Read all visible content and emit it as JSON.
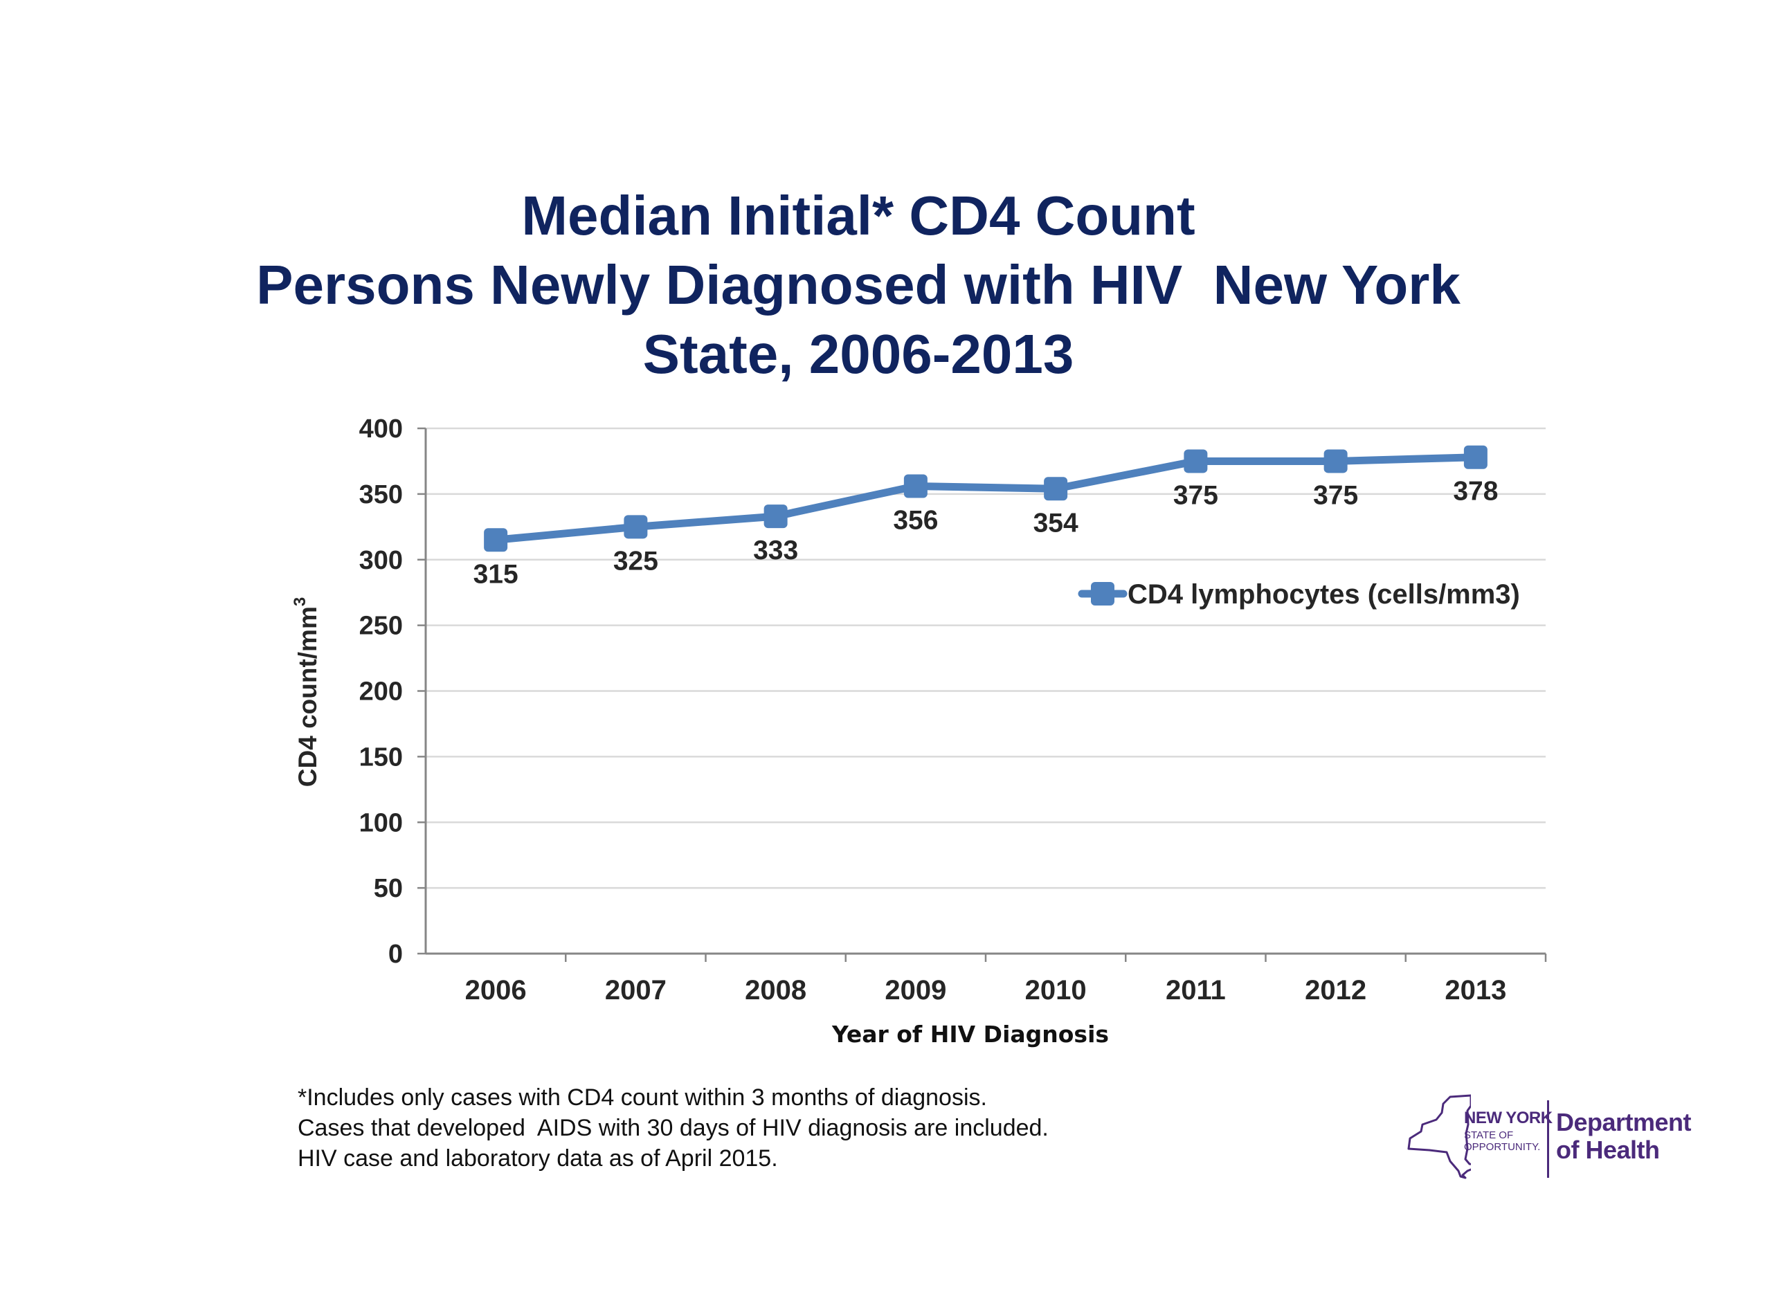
{
  "chart_data": {
    "type": "line",
    "title": [
      "Median Initial* CD4 Count",
      "Persons Newly Diagnosed with HIV  New York",
      "State, 2006-2013"
    ],
    "xlabel": "Year of HIV Diagnosis",
    "ylabel": "CD4 count/mm",
    "ylabel_superscript": "3",
    "categories": [
      "2006",
      "2007",
      "2008",
      "2009",
      "2010",
      "2011",
      "2012",
      "2013"
    ],
    "series": [
      {
        "name": "CD4 lymphocytes (cells/mm3)",
        "color": "#4f81bd",
        "values": [
          315,
          325,
          333,
          356,
          354,
          375,
          375,
          378
        ],
        "data_labels": [
          "315",
          "325",
          "333",
          "356",
          "354",
          "375",
          "375",
          "378"
        ]
      }
    ],
    "ylim": [
      0,
      400
    ],
    "yticks": [
      0,
      50,
      100,
      150,
      200,
      250,
      300,
      350,
      400
    ],
    "grid": true,
    "legend_position": "right, inside plot below line"
  },
  "footnotes": [
    "*Includes only cases with CD4 count within 3 months of diagnosis.",
    "Cases that developed  AIDS with 30 days of HIV diagnosis are included.",
    "HIV case and laboratory data as of April 2015."
  ],
  "logo": {
    "state_name": "NEW YORK",
    "state_tagline_1": "STATE OF",
    "state_tagline_2": "OPPORTUNITY.",
    "dept_line_1": "Department",
    "dept_line_2": "of Health",
    "color": "#4b2a7b"
  }
}
